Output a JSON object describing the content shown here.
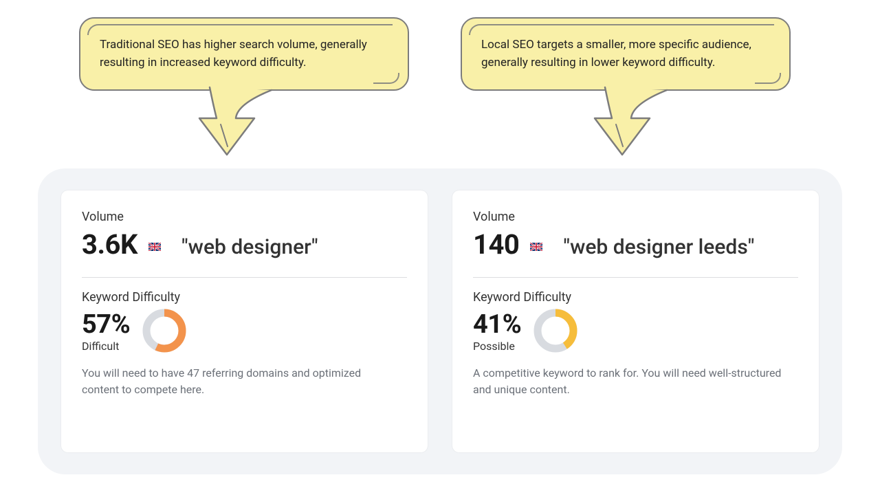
{
  "colors": {
    "bubble_fill": "#f9f0a8",
    "bubble_stroke": "#7c7c7c",
    "panel_bg": "#f2f4f7",
    "card_bg": "#ffffff",
    "blurb": "#6b7078",
    "donut_track": "#d8dbe0",
    "donut_orange": "#f3934c",
    "donut_yellow": "#f6bd3b",
    "flag_blue": "#0a2c6b",
    "flag_red": "#c8102e",
    "flag_white": "#ffffff"
  },
  "callouts": {
    "left": "Traditional SEO has higher search volume, generally resulting in increased keyword difficulty.",
    "right": "Local SEO targets a smaller, more specific audience, generally resulting in lower keyword difficulty."
  },
  "cards": {
    "left": {
      "volume_label": "Volume",
      "volume_value": "3.6K",
      "keyword": "\"web designer\"",
      "kd_label": "Keyword Difficulty",
      "kd_percent": "57%",
      "kd_percent_num": 57,
      "kd_level": "Difficult",
      "blurb": "You will need to have 47 referring domains and optimized content to compete here.",
      "donut_color_key": "donut_orange"
    },
    "right": {
      "volume_label": "Volume",
      "volume_value": "140",
      "keyword": "\"web designer leeds\"",
      "kd_label": "Keyword Difficulty",
      "kd_percent": "41%",
      "kd_percent_num": 41,
      "kd_level": "Possible",
      "blurb": "A competitive keyword to rank for. You will need well-structured and unique content.",
      "donut_color_key": "donut_yellow"
    }
  },
  "donut_style": {
    "thickness": 11,
    "radius": 26
  },
  "flag": "uk"
}
